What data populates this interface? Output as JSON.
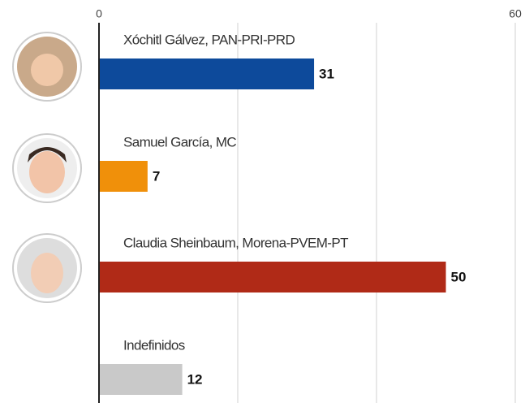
{
  "chart_data": {
    "type": "hbar",
    "categories": [
      "Xóchitl Gálvez, PAN-PRI-PRD",
      "Samuel García, MC",
      "Claudia Sheinbaum, Morena-PVEM-PT",
      "Indefinidos"
    ],
    "values": [
      31,
      7,
      50,
      12
    ],
    "colors": [
      "#0d4a9b",
      "#f0900a",
      "#b02a17",
      "#c9c9c9"
    ],
    "xlim": [
      0,
      60
    ],
    "xticks": [
      0,
      {
        "value": 20,
        "label": null
      },
      {
        "value": 40,
        "label": null
      },
      60
    ],
    "grid": true
  }
}
